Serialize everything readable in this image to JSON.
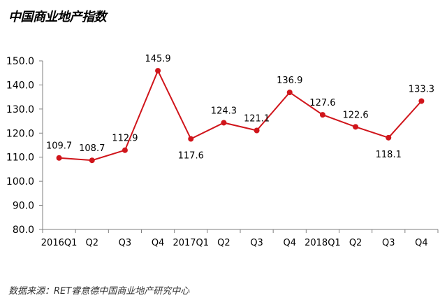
{
  "title": "中国商业地产指数",
  "source": "数据来源：RET睿意德中国商业地产研究中心",
  "colors": {
    "line": "#d0151b",
    "axis": "#7f7f7f"
  },
  "chart_data": {
    "type": "line",
    "categories": [
      "2016Q1",
      "Q2",
      "Q3",
      "Q4",
      "2017Q1",
      "Q2",
      "Q3",
      "Q4",
      "2018Q1",
      "Q2",
      "Q3",
      "Q4"
    ],
    "series": [
      {
        "values": [
          109.7,
          108.7,
          112.9,
          145.9,
          117.6,
          124.3,
          121.1,
          136.9,
          127.6,
          122.6,
          118.1,
          133.3
        ]
      }
    ],
    "data_labels": [
      "109.7",
      "108.7",
      "112.9",
      "145.9",
      "117.6",
      "124.3",
      "121.1",
      "136.9",
      "127.6",
      "122.6",
      "118.1",
      "133.3"
    ],
    "y_ticks": [
      "80.0",
      "90.0",
      "100.0",
      "110.0",
      "120.0",
      "130.0",
      "140.0",
      "150.0"
    ],
    "ylim": [
      80,
      150
    ],
    "grid": false,
    "legend": "none"
  }
}
